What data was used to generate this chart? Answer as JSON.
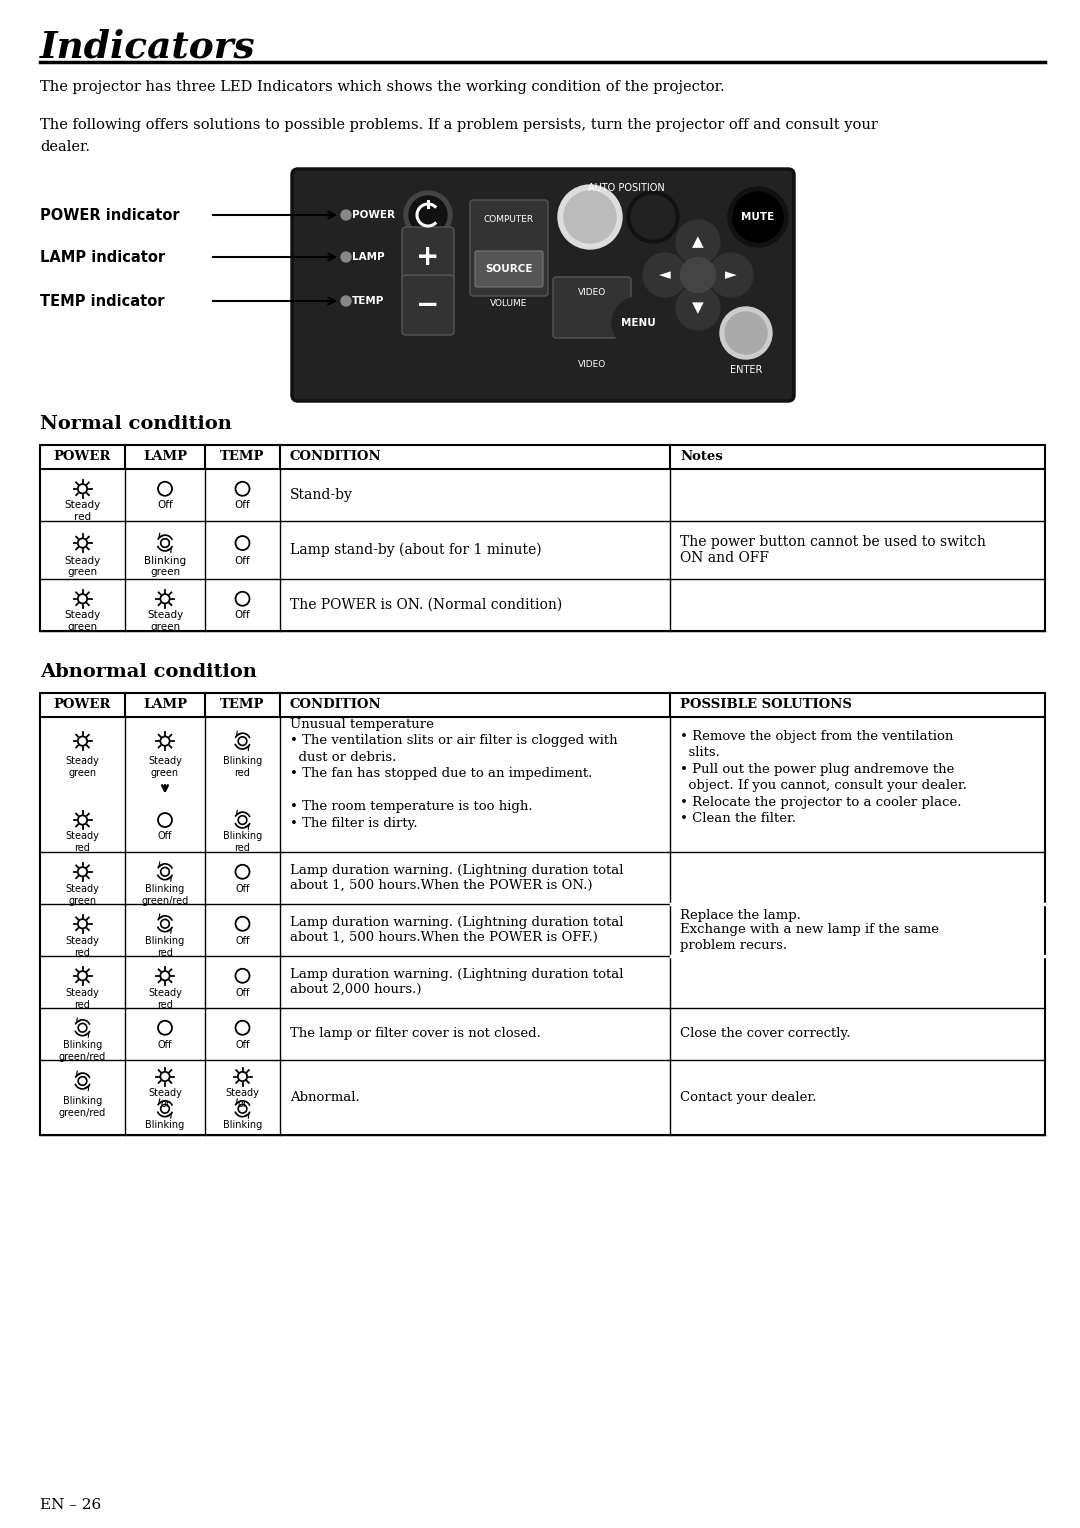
{
  "title": "Indicators",
  "page_num": "EN – 26",
  "bg_color": "#ffffff",
  "intro_text1": "The projector has three LED Indicators which shows the working condition of the projector.",
  "intro_text2": "The following offers solutions to possible problems. If a problem persists, turn the projector off and consult your",
  "intro_text3": "dealer.",
  "normal_title": "Normal condition",
  "abnormal_title": "Abnormal condition",
  "normal_headers": [
    "POWER",
    "LAMP",
    "TEMP",
    "CONDITION",
    "Notes"
  ],
  "abnormal_headers": [
    "POWER",
    "LAMP",
    "TEMP",
    "CONDITION",
    "POSSIBLE SOLUTIONS"
  ]
}
